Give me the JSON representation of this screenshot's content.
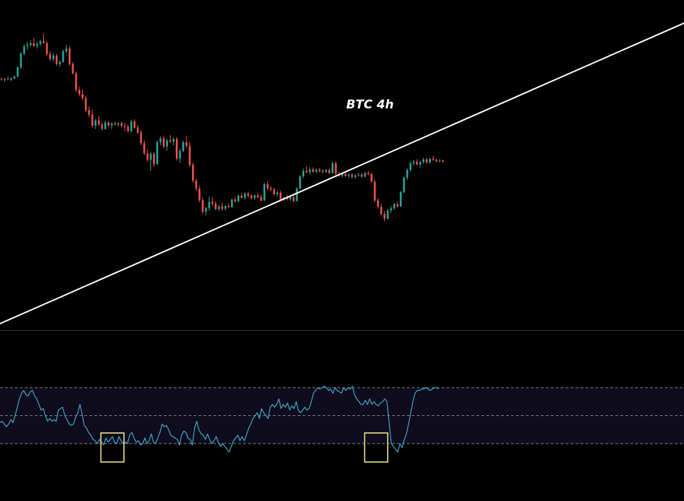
{
  "chart_data": [
    {
      "type": "candlestick",
      "title": "BTC 4h",
      "colors": {
        "up": "#26a69a",
        "down": "#ef5350",
        "trendline": "#ffffff",
        "background": "#000000"
      },
      "price_range": [
        0,
        100
      ],
      "grid": false,
      "candles": [
        [
          76.0,
          76.6,
          75.6,
          75.8
        ],
        [
          75.8,
          76.4,
          75.2,
          76.1
        ],
        [
          76.1,
          76.8,
          75.8,
          75.9
        ],
        [
          75.9,
          76.5,
          75.4,
          76.3
        ],
        [
          76.3,
          77.2,
          76.0,
          76.8
        ],
        [
          76.8,
          80.0,
          76.6,
          79.6
        ],
        [
          79.6,
          84.2,
          79.2,
          83.8
        ],
        [
          83.8,
          86.6,
          83.2,
          86.0
        ],
        [
          86.0,
          87.4,
          85.0,
          86.4
        ],
        [
          86.4,
          87.9,
          85.9,
          86.9
        ],
        [
          86.9,
          88.5,
          85.8,
          86.1
        ],
        [
          86.1,
          87.3,
          85.3,
          86.7
        ],
        [
          86.7,
          88.0,
          86.0,
          87.5
        ],
        [
          87.5,
          89.8,
          86.8,
          87.0
        ],
        [
          87.0,
          87.6,
          83.0,
          83.6
        ],
        [
          83.6,
          84.6,
          81.6,
          82.1
        ],
        [
          82.1,
          84.0,
          81.4,
          83.2
        ],
        [
          83.2,
          83.8,
          80.1,
          80.6
        ],
        [
          80.6,
          81.8,
          79.8,
          81.2
        ],
        [
          81.2,
          85.0,
          81.0,
          84.5
        ],
        [
          84.5,
          86.4,
          83.9,
          85.3
        ],
        [
          85.3,
          86.0,
          80.0,
          80.6
        ],
        [
          80.6,
          81.2,
          77.4,
          77.8
        ],
        [
          77.8,
          78.4,
          72.1,
          72.8
        ],
        [
          72.8,
          73.8,
          70.8,
          71.5
        ],
        [
          71.5,
          73.0,
          69.7,
          70.3
        ],
        [
          70.3,
          71.0,
          66.0,
          66.6
        ],
        [
          66.6,
          67.8,
          64.5,
          65.3
        ],
        [
          65.3,
          66.8,
          61.3,
          62.0
        ],
        [
          62.0,
          64.0,
          60.9,
          63.5
        ],
        [
          63.5,
          64.8,
          61.8,
          62.3
        ],
        [
          62.3,
          63.0,
          60.6,
          61.0
        ],
        [
          61.0,
          63.5,
          60.7,
          62.9
        ],
        [
          62.9,
          63.4,
          61.5,
          62.0
        ],
        [
          62.0,
          63.0,
          61.0,
          62.6
        ],
        [
          62.6,
          63.2,
          61.9,
          62.3
        ],
        [
          62.3,
          63.0,
          61.6,
          62.7
        ],
        [
          62.7,
          63.2,
          61.5,
          61.9
        ],
        [
          61.9,
          62.8,
          60.2,
          61.6
        ],
        [
          61.6,
          62.3,
          59.9,
          60.3
        ],
        [
          60.3,
          63.7,
          60.0,
          63.2
        ],
        [
          63.2,
          63.9,
          61.0,
          61.3
        ],
        [
          61.3,
          62.0,
          59.4,
          59.9
        ],
        [
          59.9,
          60.6,
          56.0,
          56.6
        ],
        [
          56.6,
          57.5,
          53.0,
          53.6
        ],
        [
          53.6,
          54.8,
          51.0,
          51.6
        ],
        [
          51.6,
          54.0,
          48.3,
          53.4
        ],
        [
          53.4,
          53.9,
          49.5,
          50.3
        ],
        [
          50.3,
          57.5,
          50.0,
          56.9
        ],
        [
          56.9,
          58.7,
          56.0,
          58.1
        ],
        [
          58.1,
          58.9,
          55.0,
          55.6
        ],
        [
          55.6,
          58.0,
          54.4,
          57.5
        ],
        [
          57.5,
          59.1,
          56.6,
          57.1
        ],
        [
          57.1,
          58.3,
          56.0,
          57.9
        ],
        [
          57.9,
          58.5,
          51.4,
          52.0
        ],
        [
          52.0,
          55.0,
          50.7,
          54.3
        ],
        [
          54.3,
          57.4,
          53.9,
          56.9
        ],
        [
          56.9,
          58.8,
          55.2,
          55.8
        ],
        [
          55.8,
          57.0,
          49.5,
          50.1
        ],
        [
          50.1,
          50.8,
          44.6,
          45.3
        ],
        [
          45.3,
          46.0,
          42.2,
          42.9
        ],
        [
          42.9,
          43.8,
          38.7,
          39.4
        ],
        [
          39.4,
          40.2,
          35.2,
          35.9
        ],
        [
          35.9,
          37.3,
          34.8,
          37.0
        ],
        [
          37.0,
          40.5,
          36.1,
          38.9
        ],
        [
          38.9,
          40.3,
          37.6,
          38.3
        ],
        [
          38.3,
          39.0,
          36.4,
          36.7
        ],
        [
          36.7,
          37.9,
          36.0,
          37.5
        ],
        [
          37.5,
          38.6,
          36.2,
          36.8
        ],
        [
          36.8,
          37.9,
          36.3,
          37.6
        ],
        [
          37.6,
          38.4,
          37.0,
          37.3
        ],
        [
          37.3,
          39.8,
          37.2,
          39.6
        ],
        [
          39.6,
          40.4,
          38.6,
          39.1
        ],
        [
          39.1,
          41.1,
          38.7,
          40.8
        ],
        [
          40.8,
          41.6,
          39.8,
          40.1
        ],
        [
          40.1,
          41.8,
          39.6,
          41.4
        ],
        [
          41.4,
          42.0,
          40.2,
          40.7
        ],
        [
          40.7,
          41.3,
          39.6,
          40.0
        ],
        [
          40.0,
          41.2,
          39.5,
          40.8
        ],
        [
          40.8,
          41.7,
          39.9,
          40.3
        ],
        [
          40.3,
          41.0,
          39.0,
          39.3
        ],
        [
          39.3,
          44.8,
          39.1,
          44.2
        ],
        [
          44.2,
          45.1,
          42.4,
          43.0
        ],
        [
          43.0,
          43.6,
          42.0,
          42.6
        ],
        [
          42.6,
          43.2,
          40.8,
          41.2
        ],
        [
          41.2,
          42.1,
          40.5,
          41.7
        ],
        [
          41.7,
          42.3,
          39.1,
          39.6
        ],
        [
          39.6,
          40.4,
          39.1,
          40.2
        ],
        [
          40.2,
          41.0,
          39.3,
          39.7
        ],
        [
          39.7,
          40.6,
          39.2,
          40.3
        ],
        [
          40.3,
          40.9,
          38.8,
          39.1
        ],
        [
          39.1,
          43.3,
          39.0,
          42.9
        ],
        [
          42.9,
          47.0,
          42.7,
          46.6
        ],
        [
          46.6,
          49.0,
          46.0,
          48.3
        ],
        [
          48.3,
          49.7,
          47.5,
          47.9
        ],
        [
          47.9,
          49.4,
          47.3,
          48.7
        ],
        [
          48.7,
          49.3,
          47.7,
          48.0
        ],
        [
          48.0,
          49.0,
          47.6,
          48.6
        ],
        [
          48.6,
          49.1,
          47.8,
          48.2
        ],
        [
          48.2,
          48.8,
          47.4,
          48.0
        ],
        [
          48.0,
          48.9,
          47.6,
          48.5
        ],
        [
          48.5,
          49.0,
          47.3,
          47.6
        ],
        [
          47.6,
          51.0,
          47.4,
          50.6
        ],
        [
          50.6,
          51.1,
          47.0,
          47.4
        ],
        [
          47.4,
          48.0,
          46.5,
          46.8
        ],
        [
          46.8,
          47.8,
          46.2,
          47.3
        ],
        [
          47.3,
          47.8,
          46.4,
          46.7
        ],
        [
          46.7,
          47.5,
          46.1,
          47.1
        ],
        [
          47.1,
          47.6,
          46.0,
          46.4
        ],
        [
          46.4,
          47.3,
          46.0,
          46.9
        ],
        [
          46.9,
          47.6,
          46.5,
          47.1
        ],
        [
          47.1,
          47.6,
          46.1,
          46.5
        ],
        [
          46.5,
          48.0,
          46.3,
          47.6
        ],
        [
          47.6,
          48.3,
          47.0,
          47.3
        ],
        [
          47.3,
          47.8,
          44.6,
          45.0
        ],
        [
          45.0,
          45.7,
          38.8,
          39.3
        ],
        [
          39.3,
          40.0,
          36.8,
          37.4
        ],
        [
          37.4,
          38.3,
          34.7,
          35.2
        ],
        [
          35.2,
          36.1,
          33.0,
          33.8
        ],
        [
          33.8,
          36.8,
          33.4,
          36.3
        ],
        [
          36.3,
          37.6,
          35.5,
          36.9
        ],
        [
          36.9,
          38.6,
          36.4,
          38.2
        ],
        [
          38.2,
          38.9,
          37.1,
          37.5
        ],
        [
          37.5,
          42.2,
          37.3,
          41.8
        ],
        [
          41.8,
          46.6,
          41.5,
          46.2
        ],
        [
          46.2,
          49.0,
          45.5,
          48.5
        ],
        [
          48.5,
          51.1,
          48.0,
          50.6
        ],
        [
          50.6,
          51.5,
          49.9,
          51.0
        ],
        [
          51.0,
          51.8,
          49.9,
          50.2
        ],
        [
          50.2,
          51.3,
          49.3,
          50.9
        ],
        [
          50.9,
          52.2,
          50.5,
          51.7
        ],
        [
          51.7,
          52.2,
          50.4,
          50.8
        ],
        [
          50.8,
          52.2,
          50.4,
          51.9
        ],
        [
          51.9,
          52.8,
          51.3,
          51.6
        ],
        [
          51.6,
          52.0,
          50.9,
          51.2
        ],
        [
          51.2,
          51.8,
          50.8,
          51.4
        ],
        [
          51.4,
          51.6,
          50.8,
          51.0
        ]
      ],
      "trendline": {
        "x": [
          0,
          1
        ],
        "y": [
          2,
          93
        ]
      }
    },
    {
      "type": "line",
      "title": "",
      "ylim": [
        0,
        100
      ],
      "levels": [
        70,
        50,
        30
      ],
      "band": [
        30,
        70
      ],
      "colors": {
        "line": "#3fa9c9",
        "band": "#0e0c1d",
        "levels": "#7b7f8e",
        "highlight": "#f5e58a"
      },
      "values": [
        45,
        46,
        44,
        42,
        44,
        47,
        45,
        50,
        56,
        62,
        66,
        68,
        65,
        64,
        67,
        68,
        64,
        62,
        58,
        54,
        55,
        50,
        46,
        48,
        46,
        47,
        46,
        54,
        55,
        56,
        50,
        47,
        44,
        43,
        44,
        49,
        52,
        58,
        51,
        43,
        41,
        38,
        36,
        33,
        32,
        30,
        33,
        31,
        29,
        34,
        31,
        33,
        35,
        31,
        30,
        35,
        32,
        30,
        31,
        30,
        36,
        38,
        34,
        31,
        32,
        29,
        30,
        34,
        30,
        32,
        37,
        31,
        30,
        34,
        38,
        44,
        42,
        43,
        40,
        36,
        35,
        34,
        33,
        29,
        36,
        39,
        38,
        34,
        33,
        29,
        41,
        46,
        40,
        37,
        36,
        33,
        37,
        33,
        30,
        32,
        35,
        31,
        28,
        30,
        28,
        26,
        24,
        28,
        32,
        34,
        36,
        32,
        35,
        32,
        36,
        41,
        44,
        48,
        50,
        52,
        48,
        55,
        52,
        50,
        48,
        56,
        58,
        56,
        58,
        62,
        55,
        58,
        56,
        59,
        54,
        57,
        55,
        60,
        54,
        52,
        54,
        56,
        54,
        55,
        60,
        66,
        68,
        70,
        69,
        70,
        71,
        70,
        68,
        69,
        66,
        70,
        68,
        67,
        66,
        70,
        68,
        70,
        69,
        71,
        65,
        62,
        60,
        58,
        58,
        61,
        58,
        62,
        58,
        60,
        58,
        57,
        59,
        60,
        62,
        60,
        45,
        30,
        28,
        26,
        24,
        30,
        27,
        33,
        37,
        44,
        52,
        60,
        66,
        68,
        68,
        69,
        69,
        70,
        69,
        68,
        69,
        70,
        70,
        69
      ],
      "highlights": [
        [
          47,
          57
        ],
        [
          169,
          179
        ]
      ]
    }
  ]
}
